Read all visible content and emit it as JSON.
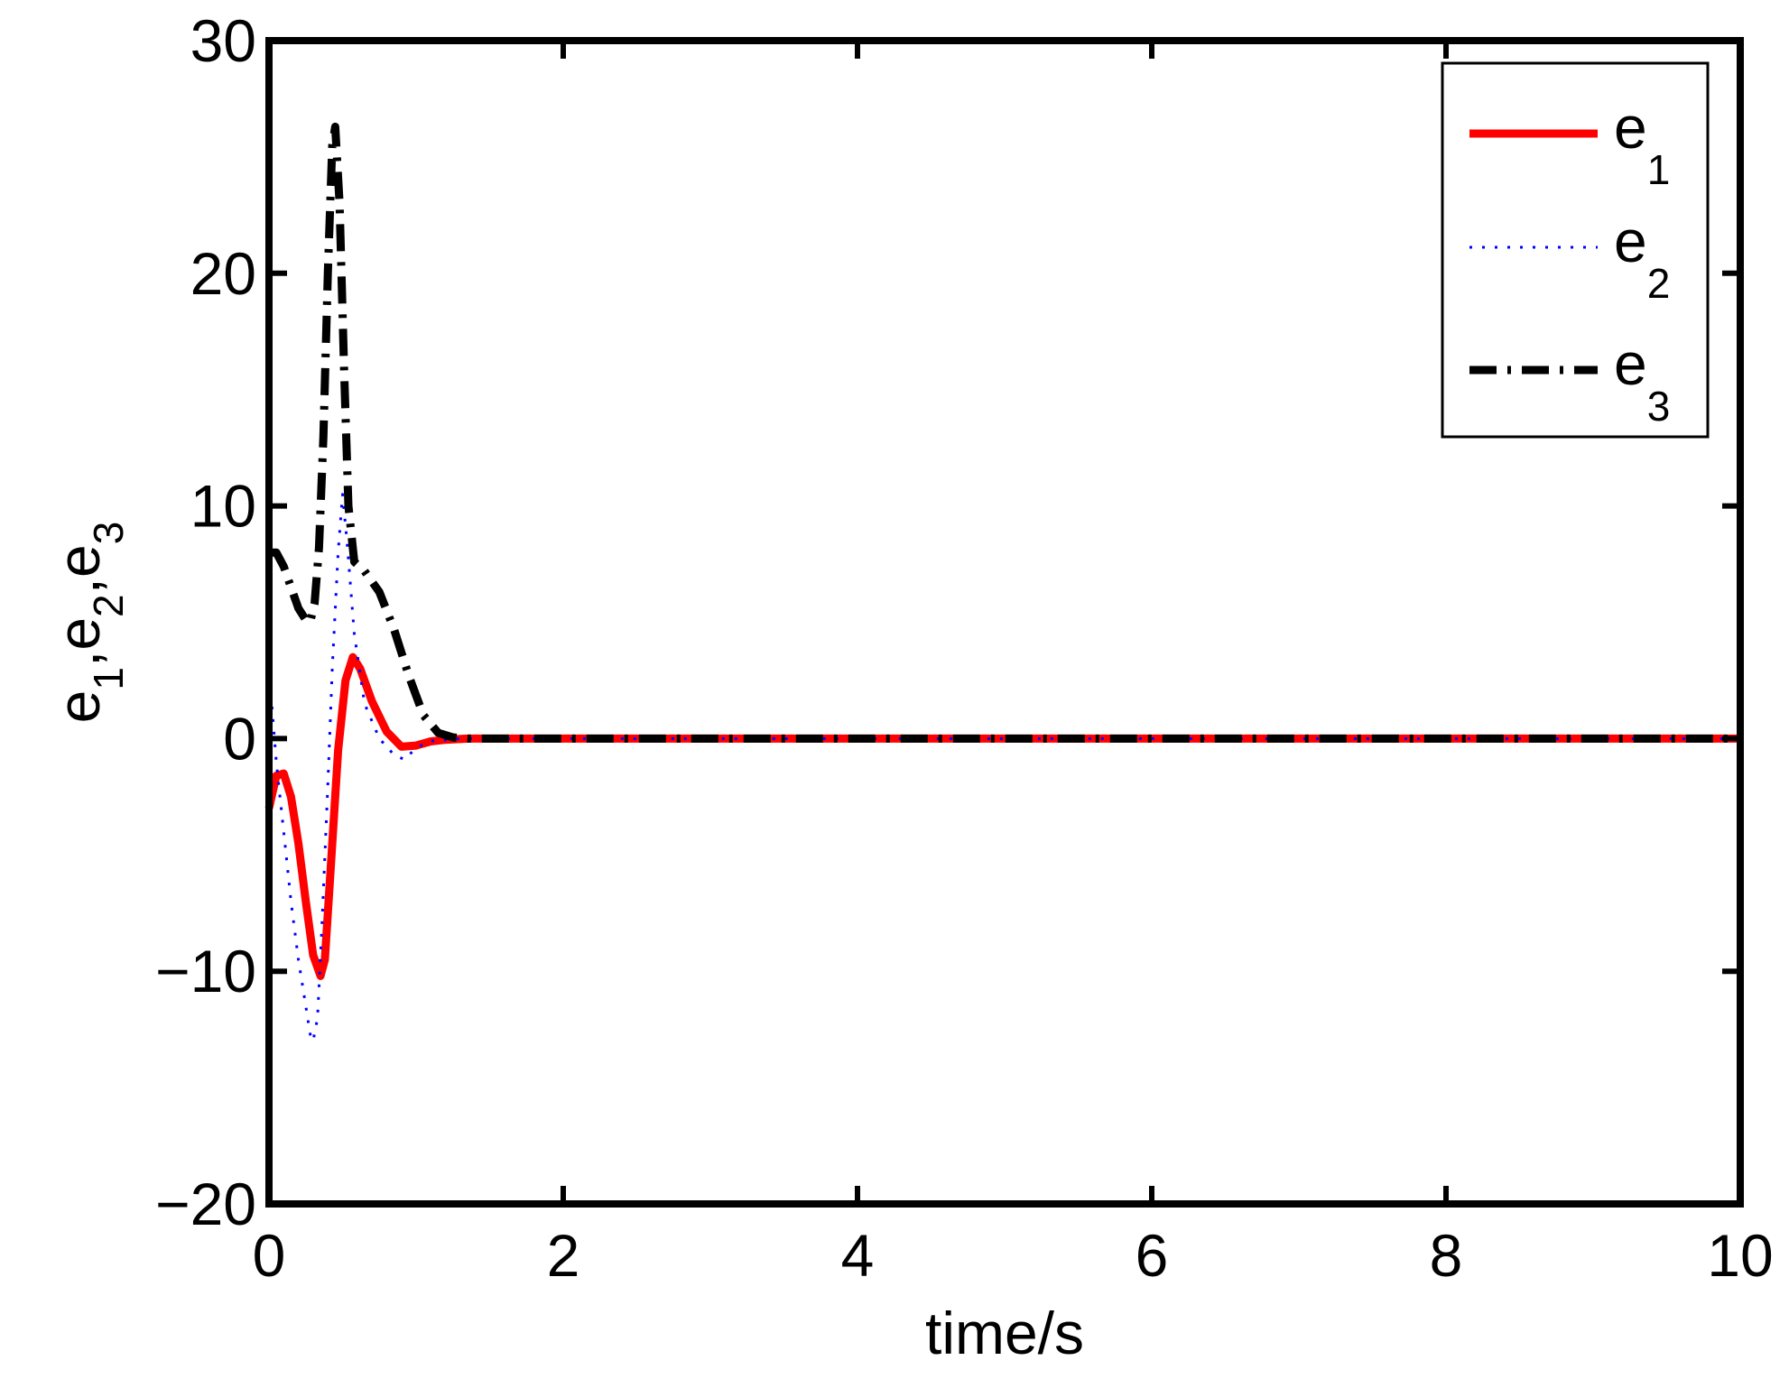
{
  "chart_data": {
    "type": "line",
    "xlabel": "time/s",
    "ylabel": {
      "parts": [
        {
          "base": "e",
          "sub": "1"
        },
        {
          "base": "e",
          "sub": "2"
        },
        {
          "base": "e",
          "sub": "3"
        }
      ],
      "separator": ","
    },
    "xlim": [
      0,
      10
    ],
    "ylim": [
      -20,
      30
    ],
    "xticks": [
      0,
      2,
      4,
      6,
      8,
      10
    ],
    "yticks": [
      -20,
      -10,
      0,
      10,
      20,
      30
    ],
    "xtick_labels": [
      "0",
      "2",
      "4",
      "6",
      "8",
      "10"
    ],
    "ytick_labels": [
      "−20",
      "−10",
      "0",
      "10",
      "20",
      "30"
    ],
    "grid": false,
    "legend_position": "top-right",
    "series": [
      {
        "name": "e",
        "name_sub": "1",
        "color": "#ff0000",
        "style": "solid",
        "points": [
          [
            0,
            -3
          ],
          [
            0.05,
            -1.6
          ],
          [
            0.1,
            -1.5
          ],
          [
            0.15,
            -2.5
          ],
          [
            0.2,
            -4.5
          ],
          [
            0.25,
            -7
          ],
          [
            0.3,
            -9.3
          ],
          [
            0.35,
            -10.2
          ],
          [
            0.38,
            -9.5
          ],
          [
            0.42,
            -5.5
          ],
          [
            0.47,
            -0.5
          ],
          [
            0.52,
            2.5
          ],
          [
            0.57,
            3.5
          ],
          [
            0.62,
            3
          ],
          [
            0.7,
            1.6
          ],
          [
            0.8,
            0.3
          ],
          [
            0.9,
            -0.35
          ],
          [
            1.0,
            -0.3
          ],
          [
            1.1,
            -0.12
          ],
          [
            1.2,
            -0.05
          ],
          [
            1.35,
            0
          ],
          [
            10,
            0
          ]
        ]
      },
      {
        "name": "e",
        "name_sub": "2",
        "color": "#0000ff",
        "style": "dotted",
        "points": [
          [
            0,
            3
          ],
          [
            0.05,
            -1
          ],
          [
            0.1,
            -4
          ],
          [
            0.15,
            -7
          ],
          [
            0.2,
            -9.5
          ],
          [
            0.25,
            -11.5
          ],
          [
            0.28,
            -12.7
          ],
          [
            0.3,
            -13
          ],
          [
            0.33,
            -12
          ],
          [
            0.36,
            -8
          ],
          [
            0.4,
            -2
          ],
          [
            0.43,
            3
          ],
          [
            0.47,
            8
          ],
          [
            0.5,
            10.5
          ],
          [
            0.53,
            8.5
          ],
          [
            0.58,
            4.5
          ],
          [
            0.65,
            1.5
          ],
          [
            0.75,
            0
          ],
          [
            0.85,
            -0.7
          ],
          [
            0.92,
            -0.9
          ],
          [
            1.0,
            -0.4
          ],
          [
            1.1,
            -0.1
          ],
          [
            1.3,
            0
          ],
          [
            10,
            0
          ]
        ]
      },
      {
        "name": "e",
        "name_sub": "3",
        "color": "#000000",
        "style": "dashdot",
        "points": [
          [
            0,
            8
          ],
          [
            0.05,
            8
          ],
          [
            0.1,
            7.4
          ],
          [
            0.15,
            6.5
          ],
          [
            0.2,
            5.6
          ],
          [
            0.25,
            5.1
          ],
          [
            0.28,
            5
          ],
          [
            0.31,
            5.8
          ],
          [
            0.34,
            8.2
          ],
          [
            0.37,
            13
          ],
          [
            0.4,
            20
          ],
          [
            0.43,
            25.5
          ],
          [
            0.45,
            26.3
          ],
          [
            0.48,
            23
          ],
          [
            0.51,
            16
          ],
          [
            0.54,
            10
          ],
          [
            0.58,
            7.6
          ],
          [
            0.65,
            7.2
          ],
          [
            0.75,
            6.3
          ],
          [
            0.85,
            4.7
          ],
          [
            0.95,
            2.7
          ],
          [
            1.05,
            1
          ],
          [
            1.15,
            0.25
          ],
          [
            1.25,
            0.05
          ],
          [
            1.35,
            0
          ],
          [
            10,
            0
          ]
        ]
      }
    ]
  }
}
